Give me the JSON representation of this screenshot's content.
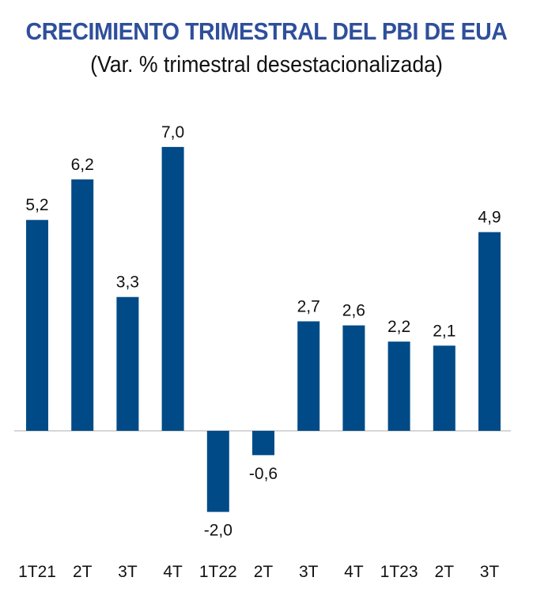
{
  "chart_data": {
    "type": "bar",
    "title": "CRECIMIENTO TRIMESTRAL DEL PBI DE EUA",
    "subtitle": "(Var. % trimestral desestacionalizada)",
    "categories": [
      "1T21",
      "2T",
      "3T",
      "4T",
      "1T22",
      "2T",
      "3T",
      "4T",
      "1T23",
      "2T",
      "3T"
    ],
    "values": [
      5.2,
      6.2,
      3.3,
      7.0,
      -2.0,
      -0.6,
      2.7,
      2.6,
      2.2,
      2.1,
      4.9
    ],
    "data_labels": [
      "5,2",
      "6,2",
      "3,3",
      "7,0",
      "-2,0",
      "-0,6",
      "2,7",
      "2,6",
      "2,2",
      "2,1",
      "4,9"
    ],
    "xlabel": "",
    "ylabel": "",
    "grid": false,
    "bar_color": "#004b87",
    "title_color": "#2f4f9b"
  }
}
